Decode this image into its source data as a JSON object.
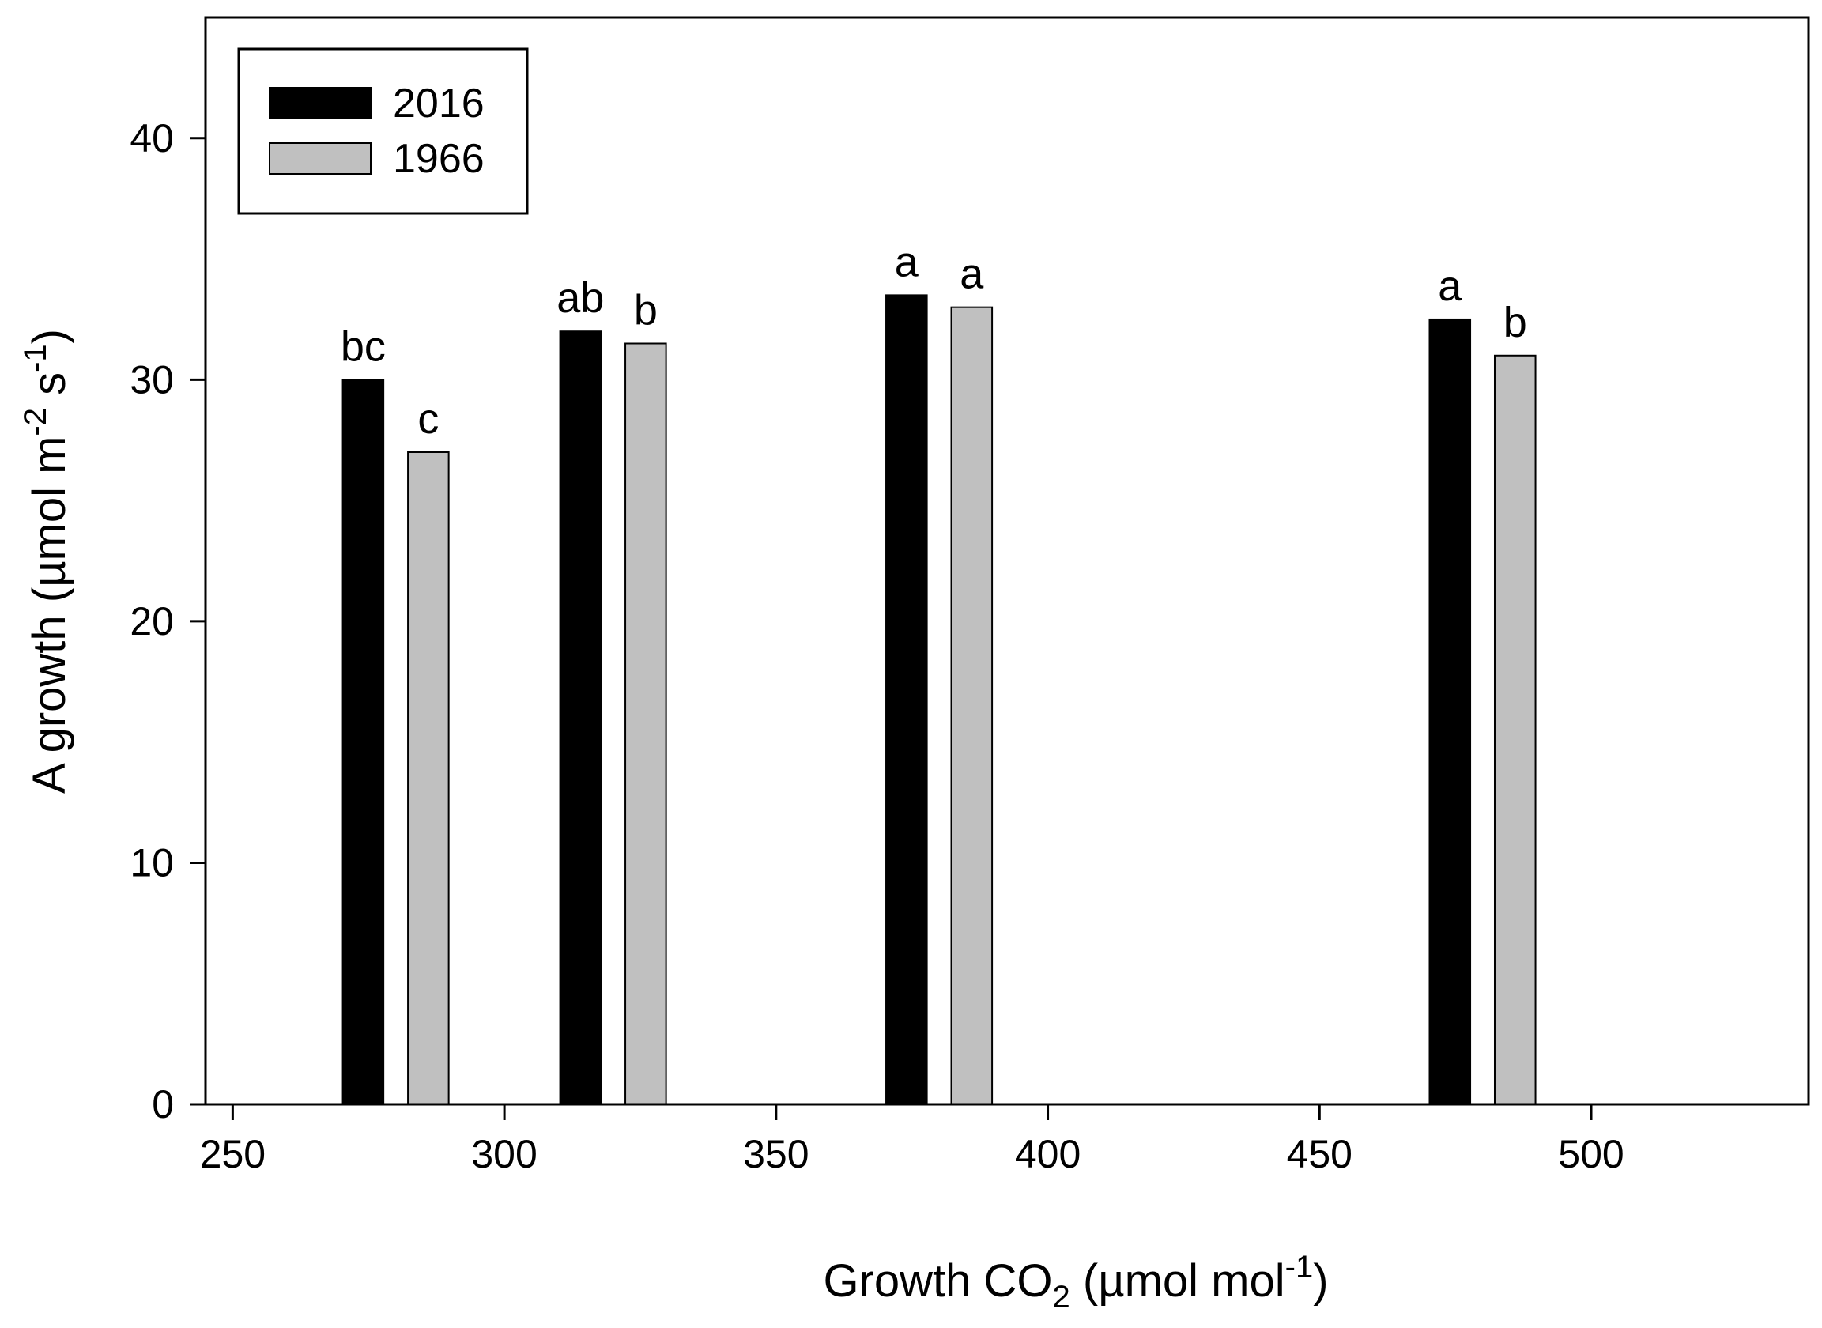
{
  "chart_data": {
    "type": "bar",
    "title": "",
    "xlabel": {
      "main": "Growth CO",
      "sub": "2",
      "unit_open": " (µmol mol",
      "sup": "-1",
      "unit_close": ")"
    },
    "ylabel": {
      "main": "A growth (µmol m",
      "sup1": "-2",
      "mid": " s",
      "sup2": "-1",
      "close": ")"
    },
    "xlim": [
      245,
      540
    ],
    "ylim": [
      0,
      45
    ],
    "xticks": [
      250,
      300,
      350,
      400,
      450,
      500
    ],
    "yticks": [
      0,
      10,
      20,
      30,
      40
    ],
    "grid": false,
    "legend_position": "top-left",
    "series": [
      {
        "name": "2016",
        "color": "#000000",
        "points": [
          {
            "x": 274,
            "y": 30,
            "label": "bc"
          },
          {
            "x": 314,
            "y": 32,
            "label": "ab"
          },
          {
            "x": 374,
            "y": 33.5,
            "label": "a"
          },
          {
            "x": 474,
            "y": 32.5,
            "label": "a"
          }
        ]
      },
      {
        "name": "1966",
        "color": "#c0c0c0",
        "points": [
          {
            "x": 286,
            "y": 27,
            "label": "c"
          },
          {
            "x": 326,
            "y": 31.5,
            "label": "b"
          },
          {
            "x": 386,
            "y": 33,
            "label": "a"
          },
          {
            "x": 486,
            "y": 31,
            "label": "b"
          }
        ]
      }
    ],
    "bar_width_x": 7.5
  }
}
